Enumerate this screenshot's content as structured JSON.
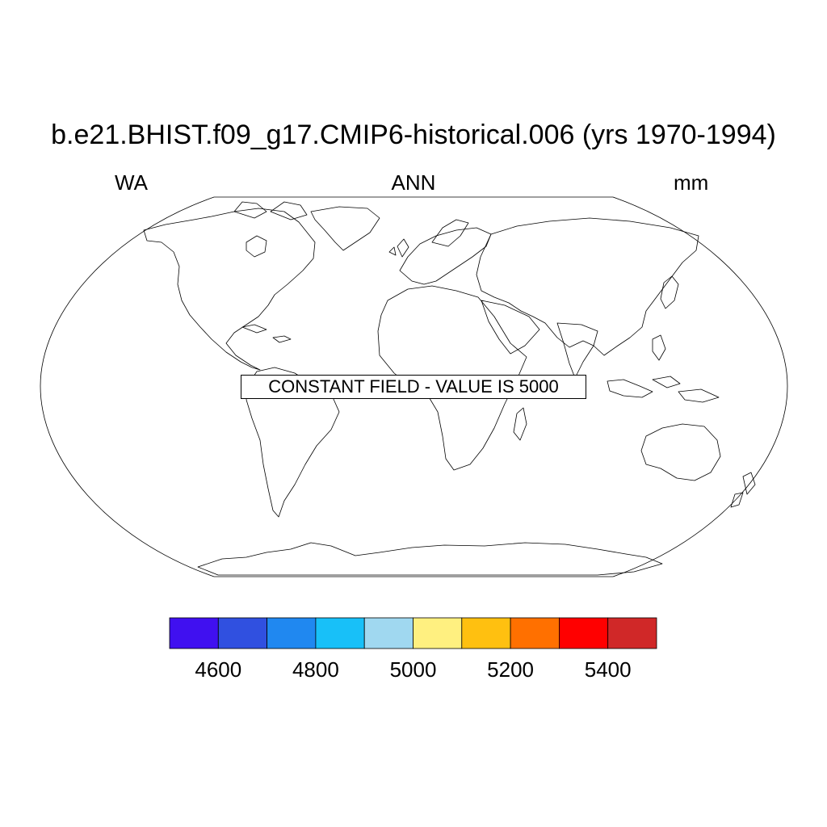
{
  "title": "b.e21.BHIST.f09_g17.CMIP6-historical.006 (yrs 1970-1994)",
  "left_label": "WA",
  "center_label": "ANN",
  "right_label": "mm",
  "notice": "CONSTANT FIELD - VALUE IS 5000",
  "projection": "robinson",
  "colorbar": {
    "colors": [
      "#4010f0",
      "#3050e0",
      "#2088f0",
      "#18c0f8",
      "#a0d8f0",
      "#fff080",
      "#ffc010",
      "#ff7000",
      "#ff0000",
      "#d02828"
    ],
    "tick_labels": [
      "4600",
      "4800",
      "5000",
      "5200",
      "5400"
    ]
  }
}
